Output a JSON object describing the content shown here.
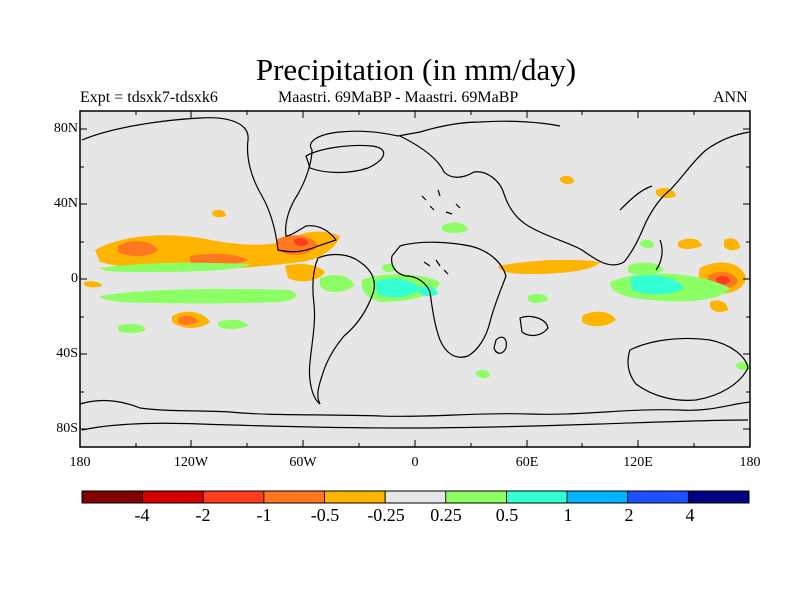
{
  "title": "Precipitation (in mm/day)",
  "subtitle_left": "Expt = tdsxk7-tdsxk6",
  "subtitle_center": "Maastri.  69MaBP - Maastri.  69MaBP",
  "subtitle_right": "ANN",
  "map": {
    "background_color": "#e6e6e6",
    "coastline_color": "#000000",
    "lat_labels": [
      "80N",
      "40N",
      "0",
      "40S",
      "80S"
    ],
    "lon_labels": [
      "180",
      "120W",
      "60W",
      "0",
      "60E",
      "120E",
      "180"
    ]
  },
  "colorbar": {
    "colors": [
      "#800000",
      "#d40000",
      "#ff3c1e",
      "#ff7820",
      "#ffb400",
      "#e6e6e6",
      "#8cff64",
      "#32ffd2",
      "#00b4ff",
      "#1e50ff",
      "#000080"
    ],
    "labels": [
      "-4",
      "-2",
      "-1",
      "-0.5",
      "-0.25",
      "0.25",
      "0.5",
      "1",
      "2",
      "4"
    ]
  }
}
